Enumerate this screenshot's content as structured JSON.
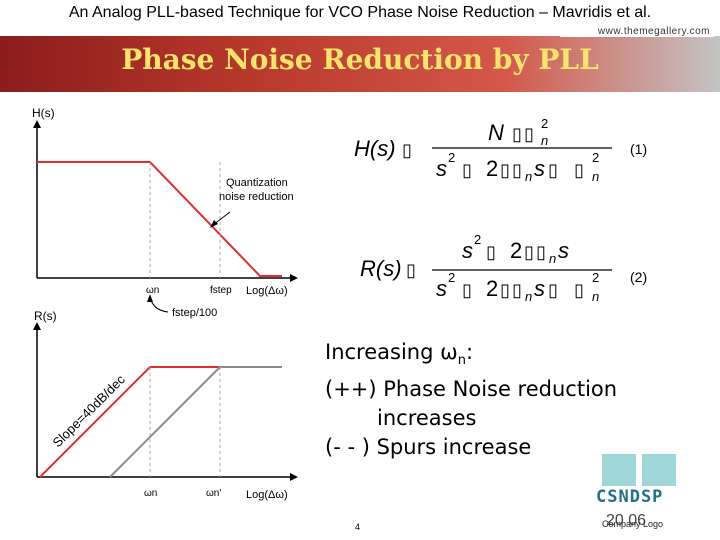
{
  "slide": {
    "top_title": "An Analog PLL-based Technique for VCO Phase Noise Reduction – Mavridis et al.",
    "website": "www.themegallery.com",
    "banner_title": "Phase Noise Reduction by PLL",
    "page_number": "4",
    "company_logo": "Company Logo",
    "csndsp": "CSNDSP",
    "year": "20 06",
    "colors": {
      "banner_dark": "#8b1c1c",
      "banner_title": "#f5e56b",
      "red_curve": "#e03030",
      "gray_curve": "#8a8a8a",
      "logo_teal": "#9fd6d8"
    }
  },
  "plot1": {
    "ylabel": "H(s)",
    "annotation_line1": "Quantization",
    "annotation_line2": "noise reduction",
    "tick_wn": "ωn",
    "tick_fstep": "fstep",
    "xlabel": "Log(Δω)",
    "fstep_note": "fstep/100"
  },
  "plot2": {
    "ylabel": "R(s)",
    "slope_label": "Slope=40dB/dec",
    "tick_wn": "ωn",
    "tick_wn_prime": "ωn'",
    "xlabel": "Log(Δω)"
  },
  "equations": {
    "eq1_lhs_a": "H(s)",
    "eq1_num": "N",
    "eq1_sup2": "2",
    "eq1_sub_n": "n",
    "eq1_den_s": "s",
    "eq1_den_2": "2",
    "eq1_den_s2": "s",
    "eq1_number": "(1)",
    "eq2_lhs": "R(s)",
    "eq2_num_s": "s",
    "eq2_num_2": "2",
    "eq2_num_s2": "s",
    "eq2_number": "(2)",
    "box": "▯"
  },
  "bullets": {
    "line1_main": "Increasing ω",
    "line1_sub": "n",
    "line1_end": ":",
    "line2": "(++) Phase Noise reduction",
    "line3": "increases",
    "line4": "(- - ) Spurs increase"
  }
}
